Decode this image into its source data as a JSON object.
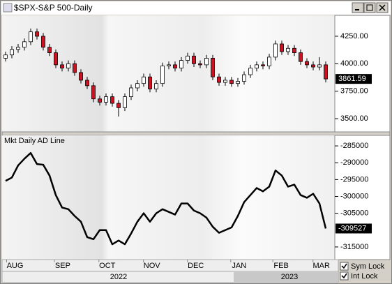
{
  "window": {
    "title": "$SPX-S&P 500-Daily"
  },
  "chart_data": [
    {
      "type": "candlestick",
      "open": [
        4050,
        4080,
        4130,
        4150,
        4200,
        4290,
        4250,
        4150,
        4100,
        3990,
        3960,
        4000,
        3920,
        3850,
        3800,
        3680,
        3650,
        3700,
        3640,
        3600,
        3700,
        3780,
        3820,
        3880,
        3770,
        3820,
        3980,
        3990,
        3960,
        4030,
        4070,
        4000,
        3990,
        4050,
        3880,
        3830,
        3850,
        3820,
        3840,
        3900,
        3960,
        3990,
        3980,
        4060,
        4180,
        4110,
        4140,
        4100,
        4020,
        3990,
        3970,
        3990
      ],
      "high": [
        4110,
        4160,
        4180,
        4230,
        4320,
        4320,
        4280,
        4180,
        4130,
        4020,
        4030,
        4030,
        3950,
        3880,
        3830,
        3710,
        3730,
        3730,
        3670,
        3730,
        3810,
        3850,
        3910,
        3910,
        3850,
        4010,
        4020,
        4020,
        4060,
        4100,
        4100,
        4030,
        4080,
        4080,
        3910,
        3880,
        3880,
        3870,
        3930,
        3990,
        4020,
        4020,
        4090,
        4210,
        4210,
        4170,
        4170,
        4130,
        4050,
        4020,
        4060,
        4020
      ],
      "low": [
        4020,
        4050,
        4100,
        4120,
        4170,
        4220,
        4120,
        4070,
        3960,
        3930,
        3930,
        3890,
        3820,
        3770,
        3650,
        3620,
        3620,
        3610,
        3520,
        3570,
        3670,
        3750,
        3790,
        3740,
        3740,
        3790,
        3950,
        3930,
        3930,
        4000,
        3970,
        3960,
        3960,
        3850,
        3800,
        3800,
        3790,
        3790,
        3810,
        3870,
        3930,
        3950,
        3950,
        4030,
        4080,
        4080,
        4070,
        3990,
        3960,
        3940,
        3940,
        3830
      ],
      "close": [
        4080,
        4130,
        4150,
        4200,
        4290,
        4250,
        4150,
        4100,
        3990,
        3960,
        4000,
        3920,
        3850,
        3800,
        3680,
        3650,
        3700,
        3640,
        3600,
        3700,
        3780,
        3820,
        3880,
        3770,
        3820,
        3980,
        3990,
        3960,
        4030,
        4070,
        4000,
        3990,
        4050,
        3880,
        3830,
        3850,
        3820,
        3840,
        3900,
        3960,
        3990,
        3980,
        4060,
        4180,
        4110,
        4140,
        4100,
        4020,
        3990,
        3970,
        3990,
        3861.59
      ],
      "up_color": "#ffffff",
      "down_color": "#cc1122",
      "ylim": [
        3380,
        4440
      ],
      "yticks": [
        {
          "value": 3500,
          "label": "3500.00"
        },
        {
          "value": 3750,
          "label": "3750.00"
        },
        {
          "value": 4000,
          "label": "4000.00"
        },
        {
          "value": 4250,
          "label": "4250.00"
        }
      ]
    },
    {
      "type": "line",
      "title": "Mkt Daily AD Line",
      "color": "#000000",
      "values": [
        -295400,
        -294400,
        -290800,
        -288800,
        -287100,
        -290400,
        -290600,
        -293800,
        -299600,
        -303300,
        -303800,
        -305800,
        -307500,
        -312100,
        -312700,
        -310000,
        -310000,
        -314200,
        -313100,
        -314200,
        -311000,
        -307500,
        -305000,
        -307500,
        -305000,
        -303800,
        -304600,
        -305400,
        -302100,
        -302100,
        -304200,
        -305000,
        -306300,
        -309000,
        -310800,
        -310000,
        -309200,
        -305800,
        -301700,
        -299600,
        -297500,
        -298500,
        -297100,
        -292300,
        -293800,
        -297100,
        -296500,
        -299600,
        -300400,
        -299200,
        -302100,
        -309527
      ],
      "ylim": [
        -318750,
        -281875
      ],
      "yticks": [
        -285000,
        -290000,
        -295000,
        -300000,
        -305000,
        -315000
      ]
    }
  ],
  "x_axis": {
    "xticks": [
      {
        "value": 1.5,
        "label": "AUG"
      },
      {
        "value": 9.1,
        "label": "SEP"
      },
      {
        "value": 16.2,
        "label": "OCT"
      },
      {
        "value": 23.3,
        "label": "NOV"
      },
      {
        "value": 30.3,
        "label": "DEC"
      },
      {
        "value": 37.2,
        "label": "JAN"
      },
      {
        "value": 43.9,
        "label": "FEB"
      },
      {
        "value": 50.3,
        "label": "MAR"
      }
    ],
    "years": [
      "2022",
      "2023"
    ]
  },
  "controls": [
    {
      "label": "Sym Lock",
      "checked": true
    },
    {
      "label": "Int Lock",
      "checked": true
    }
  ]
}
